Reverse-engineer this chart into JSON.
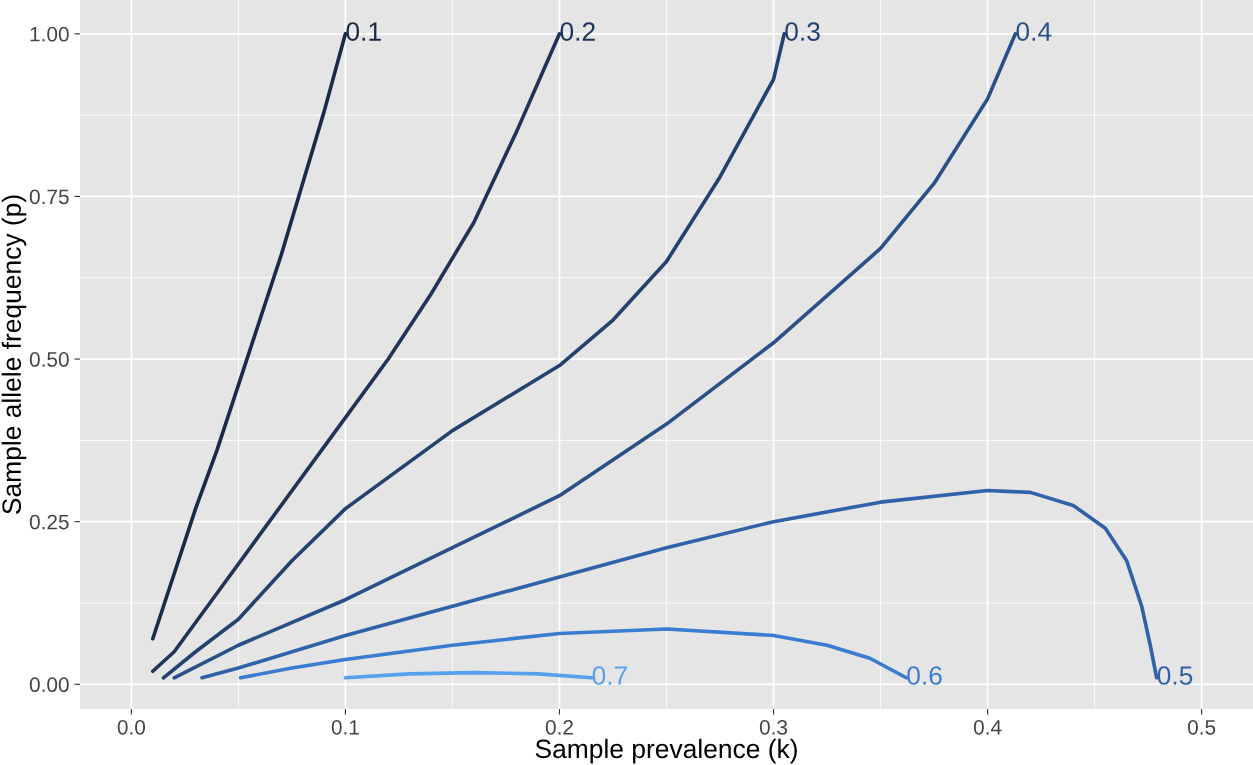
{
  "chart_data": {
    "type": "line",
    "xlabel": "Sample prevalence (k)",
    "ylabel": "Sample allele frequency (p)",
    "xlim": [
      -0.024,
      0.524
    ],
    "ylim": [
      -0.038,
      1.052
    ],
    "xticks": [
      {
        "value": 0,
        "label": "0.0"
      },
      0.1,
      0.2,
      0.3,
      0.4,
      0.5
    ],
    "yticks": [
      {
        "value": 0,
        "label": "0.00"
      },
      0.25,
      {
        "value": 0.5,
        "label": "0.50"
      },
      0.75,
      {
        "value": 1,
        "label": "1.00"
      }
    ],
    "grid": true,
    "legend": false,
    "marker": "none",
    "line_style": "solid",
    "series": [
      {
        "name": "0.1",
        "color": "#1b2a47",
        "x": [
          0.01,
          0.02,
          0.03,
          0.04,
          0.05,
          0.06,
          0.07,
          0.08,
          0.09,
          0.1
        ],
        "values": [
          0.07,
          0.17,
          0.27,
          0.36,
          0.46,
          0.56,
          0.66,
          0.77,
          0.88,
          1.0
        ]
      },
      {
        "name": "0.2",
        "color": "#1f3458",
        "x": [
          0.01,
          0.02,
          0.04,
          0.06,
          0.08,
          0.1,
          0.12,
          0.14,
          0.16,
          0.18,
          0.2
        ],
        "values": [
          0.02,
          0.05,
          0.14,
          0.23,
          0.32,
          0.41,
          0.5,
          0.6,
          0.71,
          0.85,
          1.0
        ]
      },
      {
        "name": "0.3",
        "color": "#244270",
        "x": [
          0.015,
          0.03,
          0.05,
          0.075,
          0.1,
          0.125,
          0.15,
          0.175,
          0.2,
          0.225,
          0.25,
          0.275,
          0.3,
          0.305
        ],
        "values": [
          0.01,
          0.05,
          0.1,
          0.19,
          0.27,
          0.33,
          0.39,
          0.44,
          0.49,
          0.56,
          0.65,
          0.78,
          0.93,
          1.0
        ]
      },
      {
        "name": "0.4",
        "color": "#2a5088",
        "x": [
          0.02,
          0.05,
          0.1,
          0.15,
          0.2,
          0.25,
          0.3,
          0.35,
          0.375,
          0.4,
          0.413
        ],
        "values": [
          0.01,
          0.06,
          0.13,
          0.21,
          0.29,
          0.4,
          0.525,
          0.67,
          0.77,
          0.9,
          1.0
        ]
      },
      {
        "name": "0.5",
        "color": "#2f62a8",
        "x": [
          0.033,
          0.05,
          0.1,
          0.15,
          0.2,
          0.25,
          0.3,
          0.35,
          0.4,
          0.42,
          0.44,
          0.455,
          0.465,
          0.472,
          0.476,
          0.479
        ],
        "values": [
          0.01,
          0.025,
          0.075,
          0.12,
          0.165,
          0.21,
          0.25,
          0.28,
          0.298,
          0.295,
          0.275,
          0.24,
          0.19,
          0.12,
          0.06,
          0.01
        ]
      },
      {
        "name": "0.6",
        "color": "#3a7cd0",
        "x": [
          0.051,
          0.075,
          0.1,
          0.15,
          0.2,
          0.25,
          0.3,
          0.325,
          0.345,
          0.362
        ],
        "values": [
          0.01,
          0.025,
          0.038,
          0.06,
          0.078,
          0.085,
          0.075,
          0.06,
          0.04,
          0.01
        ]
      },
      {
        "name": "0.7",
        "color": "#56a0ee",
        "x": [
          0.1,
          0.13,
          0.16,
          0.19,
          0.215
        ],
        "values": [
          0.01,
          0.016,
          0.018,
          0.016,
          0.01
        ]
      }
    ]
  }
}
